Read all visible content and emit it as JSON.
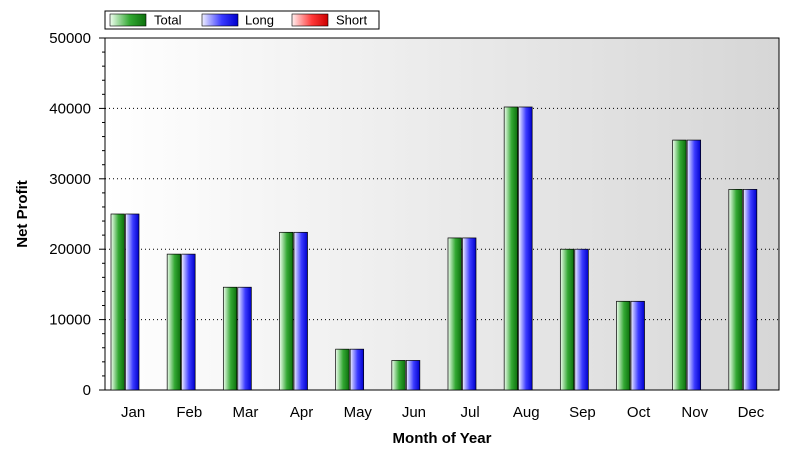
{
  "chart_data": {
    "type": "bar",
    "title": "",
    "xlabel": "Month of Year",
    "ylabel": "Net Profit",
    "categories": [
      "Jan",
      "Feb",
      "Mar",
      "Apr",
      "May",
      "Jun",
      "Jul",
      "Aug",
      "Sep",
      "Oct",
      "Nov",
      "Dec"
    ],
    "series": [
      {
        "name": "Total",
        "color": "#1a8a1a",
        "values": [
          25000,
          19300,
          14600,
          22400,
          5800,
          4200,
          21600,
          40200,
          20000,
          12600,
          35500,
          28500
        ]
      },
      {
        "name": "Long",
        "color": "#1a1aff",
        "values": [
          25000,
          19300,
          14600,
          22400,
          5800,
          4200,
          21600,
          40200,
          20000,
          12600,
          35500,
          28500
        ]
      },
      {
        "name": "Short",
        "color": "#ff1a1a",
        "values": [
          0,
          0,
          0,
          0,
          0,
          0,
          0,
          0,
          0,
          0,
          0,
          0
        ]
      }
    ],
    "ylim": [
      0,
      50000
    ],
    "yticks": [
      0,
      10000,
      20000,
      30000,
      40000,
      50000
    ],
    "gridlines": "horizontal-dotted",
    "legend_position": "top-left"
  }
}
